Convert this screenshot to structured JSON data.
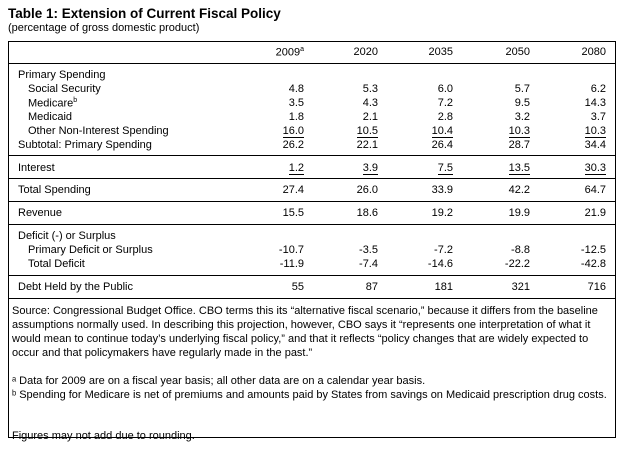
{
  "title": "Table 1: Extension of Current Fiscal Policy",
  "subtitle": "(percentage of gross domestic product)",
  "columns": [
    "2009",
    "2020",
    "2035",
    "2050",
    "2080"
  ],
  "column_first_sup": "a",
  "rows": {
    "primary_spending": "Primary Spending",
    "social_security": {
      "label": "Social Security",
      "values": [
        "4.8",
        "5.3",
        "6.0",
        "5.7",
        "6.2"
      ]
    },
    "medicare": {
      "label": "Medicare",
      "sup": "b",
      "values": [
        "3.5",
        "4.3",
        "7.2",
        "9.5",
        "14.3"
      ]
    },
    "medicaid": {
      "label": "Medicaid",
      "values": [
        "1.8",
        "2.1",
        "2.8",
        "3.2",
        "3.7"
      ]
    },
    "other": {
      "label": "Other Non-Interest Spending",
      "values": [
        "16.0",
        "10.5",
        "10.4",
        "10.3",
        "10.3"
      ]
    },
    "subtotal": {
      "label": "Subtotal: Primary Spending",
      "values": [
        "26.2",
        "22.1",
        "26.4",
        "28.7",
        "34.4"
      ]
    },
    "interest": {
      "label": "Interest",
      "values": [
        "1.2",
        "3.9",
        "7.5",
        "13.5",
        "30.3"
      ]
    },
    "total_spending": {
      "label": "Total Spending",
      "values": [
        "27.4",
        "26.0",
        "33.9",
        "42.2",
        "64.7"
      ]
    },
    "revenue": {
      "label": "Revenue",
      "values": [
        "15.5",
        "18.6",
        "19.2",
        "19.9",
        "21.9"
      ]
    },
    "deficit_header": "Deficit (-) or Surplus",
    "primary_deficit": {
      "label": "Primary Deficit or Surplus",
      "values": [
        "-10.7",
        "-3.5",
        "-7.2",
        "-8.8",
        "-12.5"
      ]
    },
    "total_deficit": {
      "label": "Total Deficit",
      "values": [
        "-11.9",
        "-7.4",
        "-14.6",
        "-22.2",
        "-42.8"
      ]
    },
    "debt": {
      "label": "Debt Held by the Public",
      "values": [
        "55",
        "87",
        "181",
        "321",
        "716"
      ]
    }
  },
  "source": "Source: Congressional Budget Office. CBO terms this its “alternative fiscal scenario,” because it differs from the baseline assumptions normally used. In describing this projection, however, CBO says it “represents one interpretation of what it would mean to continue today’s underlying fiscal policy,” and that it reflects “policy changes that are widely expected to occur and that policymakers have regularly made in the past.”",
  "footnote_a": "ᵃ Data for 2009 are on a fiscal year basis; all other data are on a calendar year basis.",
  "footnote_b": "ᵇ Spending for Medicare is net of premiums and amounts paid by States from savings on Medicaid prescription drug costs.",
  "rounding": "Figures may not add due to rounding."
}
